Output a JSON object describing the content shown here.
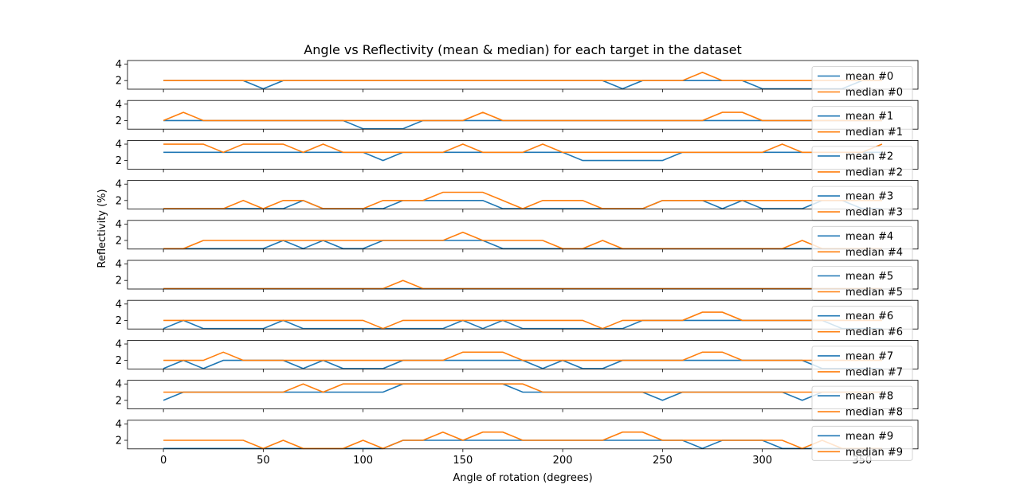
{
  "figure": {
    "title": "Angle vs Reflectivity (mean & median) for each target in the dataset",
    "xlabel": "Angle of rotation (degrees)",
    "ylabel": "Reflectivity (%)"
  },
  "colors": {
    "mean": "#1f77b4",
    "median": "#ff7f0e"
  },
  "chart_data": {
    "type": "line",
    "x": [
      0,
      10,
      20,
      30,
      40,
      50,
      60,
      70,
      80,
      90,
      100,
      110,
      120,
      130,
      140,
      150,
      160,
      170,
      180,
      190,
      200,
      210,
      220,
      230,
      240,
      250,
      260,
      270,
      280,
      290,
      300,
      310,
      320,
      330,
      340,
      350,
      360
    ],
    "xlim": [
      -18,
      378
    ],
    "ylim": [
      0.95,
      4.45
    ],
    "xticks": [
      0,
      50,
      100,
      150,
      200,
      250,
      300,
      350
    ],
    "yticks": [
      2,
      4
    ],
    "subplots": [
      {
        "series": [
          {
            "name": "mean #0",
            "values": [
              2,
              2,
              2,
              2,
              2,
              1,
              2,
              2,
              2,
              2,
              2,
              2,
              2,
              2,
              2,
              2,
              2,
              2,
              2,
              2,
              2,
              2,
              2,
              1,
              2,
              2,
              2,
              2,
              2,
              2,
              1,
              1,
              1,
              1,
              1,
              2,
              2
            ]
          },
          {
            "name": "median #0",
            "values": [
              2,
              2,
              2,
              2,
              2,
              2,
              2,
              2,
              2,
              2,
              2,
              2,
              2,
              2,
              2,
              2,
              2,
              2,
              2,
              2,
              2,
              2,
              2,
              2,
              2,
              2,
              2,
              3,
              2,
              2,
              2,
              2,
              2,
              2,
              2,
              2,
              2
            ]
          }
        ]
      },
      {
        "series": [
          {
            "name": "mean #1",
            "values": [
              2,
              2,
              2,
              2,
              2,
              2,
              2,
              2,
              2,
              2,
              1,
              1,
              1,
              2,
              2,
              2,
              2,
              2,
              2,
              2,
              2,
              2,
              2,
              2,
              2,
              2,
              2,
              2,
              2,
              2,
              2,
              2,
              2,
              2,
              2,
              2,
              2
            ]
          },
          {
            "name": "median #1",
            "values": [
              2,
              3,
              2,
              2,
              2,
              2,
              2,
              2,
              2,
              2,
              2,
              2,
              2,
              2,
              2,
              2,
              3,
              2,
              2,
              2,
              2,
              2,
              2,
              2,
              2,
              2,
              2,
              2,
              3,
              3,
              2,
              2,
              2,
              2,
              2,
              2,
              2
            ]
          }
        ]
      },
      {
        "series": [
          {
            "name": "mean #2",
            "values": [
              3,
              3,
              3,
              3,
              3,
              3,
              3,
              3,
              3,
              3,
              3,
              2,
              3,
              3,
              3,
              3,
              3,
              3,
              3,
              3,
              3,
              2,
              2,
              2,
              2,
              2,
              3,
              3,
              3,
              3,
              3,
              3,
              3,
              3,
              3,
              3,
              3
            ]
          },
          {
            "name": "median #2",
            "values": [
              4,
              4,
              4,
              3,
              4,
              4,
              4,
              3,
              4,
              3,
              3,
              3,
              3,
              3,
              3,
              4,
              3,
              3,
              3,
              4,
              3,
              3,
              3,
              3,
              3,
              3,
              3,
              3,
              3,
              3,
              3,
              4,
              3,
              3,
              3,
              3,
              4
            ]
          }
        ]
      },
      {
        "series": [
          {
            "name": "mean #3",
            "values": [
              1,
              1,
              1,
              1,
              1,
              1,
              1,
              2,
              1,
              1,
              1,
              1,
              2,
              2,
              2,
              2,
              2,
              1,
              1,
              1,
              1,
              1,
              1,
              1,
              1,
              2,
              2,
              2,
              1,
              2,
              1,
              1,
              1,
              2,
              2,
              1,
              1
            ]
          },
          {
            "name": "median #3",
            "values": [
              1,
              1,
              1,
              1,
              2,
              1,
              2,
              2,
              1,
              1,
              1,
              2,
              2,
              2,
              3,
              3,
              3,
              2,
              1,
              2,
              2,
              2,
              1,
              1,
              1,
              2,
              2,
              2,
              2,
              2,
              2,
              2,
              2,
              2,
              2,
              2,
              2
            ]
          }
        ]
      },
      {
        "series": [
          {
            "name": "mean #4",
            "values": [
              1,
              1,
              1,
              1,
              1,
              1,
              2,
              1,
              2,
              1,
              1,
              2,
              2,
              2,
              2,
              2,
              2,
              1,
              1,
              1,
              1,
              1,
              1,
              1,
              1,
              1,
              1,
              1,
              1,
              1,
              1,
              1,
              1,
              1,
              1,
              1,
              1
            ]
          },
          {
            "name": "median #4",
            "values": [
              1,
              1,
              2,
              2,
              2,
              2,
              2,
              2,
              2,
              2,
              2,
              2,
              2,
              2,
              2,
              3,
              2,
              2,
              2,
              2,
              1,
              1,
              2,
              1,
              1,
              1,
              1,
              1,
              1,
              1,
              1,
              1,
              2,
              1,
              1,
              1,
              1
            ]
          }
        ]
      },
      {
        "series": [
          {
            "name": "mean #5",
            "values": [
              1,
              1,
              1,
              1,
              1,
              1,
              1,
              1,
              1,
              1,
              1,
              1,
              1,
              1,
              1,
              1,
              1,
              1,
              1,
              1,
              1,
              1,
              1,
              1,
              1,
              1,
              1,
              1,
              1,
              1,
              1,
              1,
              1,
              1,
              1,
              1,
              1
            ]
          },
          {
            "name": "median #5",
            "values": [
              1,
              1,
              1,
              1,
              1,
              1,
              1,
              1,
              1,
              1,
              1,
              1,
              2,
              1,
              1,
              1,
              1,
              1,
              1,
              1,
              1,
              1,
              1,
              1,
              1,
              1,
              1,
              1,
              1,
              1,
              1,
              1,
              1,
              1,
              1,
              1,
              1
            ]
          }
        ]
      },
      {
        "series": [
          {
            "name": "mean #6",
            "values": [
              1,
              2,
              1,
              1,
              1,
              1,
              2,
              1,
              1,
              1,
              1,
              1,
              1,
              1,
              1,
              2,
              1,
              2,
              1,
              1,
              1,
              1,
              1,
              1,
              2,
              2,
              2,
              2,
              2,
              2,
              2,
              2,
              2,
              2,
              1,
              1,
              1
            ]
          },
          {
            "name": "median #6",
            "values": [
              2,
              2,
              2,
              2,
              2,
              2,
              2,
              2,
              2,
              2,
              2,
              1,
              2,
              2,
              2,
              2,
              2,
              2,
              2,
              2,
              2,
              2,
              1,
              2,
              2,
              2,
              2,
              3,
              3,
              2,
              2,
              2,
              2,
              2,
              2,
              2,
              2
            ]
          }
        ]
      },
      {
        "series": [
          {
            "name": "mean #7",
            "values": [
              1,
              2,
              1,
              2,
              2,
              2,
              2,
              1,
              2,
              1,
              1,
              1,
              2,
              2,
              2,
              2,
              2,
              2,
              2,
              1,
              2,
              1,
              1,
              2,
              2,
              2,
              2,
              2,
              2,
              2,
              2,
              2,
              2,
              1,
              1,
              1,
              1
            ]
          },
          {
            "name": "median #7",
            "values": [
              2,
              2,
              2,
              3,
              2,
              2,
              2,
              2,
              2,
              2,
              2,
              2,
              2,
              2,
              2,
              3,
              3,
              3,
              2,
              2,
              2,
              2,
              2,
              2,
              2,
              2,
              2,
              3,
              3,
              2,
              2,
              2,
              2,
              2,
              2,
              2,
              2
            ]
          }
        ]
      },
      {
        "series": [
          {
            "name": "mean #8",
            "values": [
              2,
              3,
              3,
              3,
              3,
              3,
              3,
              3,
              3,
              3,
              3,
              3,
              4,
              4,
              4,
              4,
              4,
              4,
              3,
              3,
              3,
              3,
              3,
              3,
              3,
              2,
              3,
              3,
              3,
              3,
              3,
              3,
              2,
              3,
              3,
              3,
              3
            ]
          },
          {
            "name": "median #8",
            "values": [
              3,
              3,
              3,
              3,
              3,
              3,
              3,
              4,
              3,
              4,
              4,
              4,
              4,
              4,
              4,
              4,
              4,
              4,
              4,
              3,
              3,
              3,
              3,
              3,
              3,
              3,
              3,
              3,
              3,
              3,
              3,
              3,
              3,
              3,
              3,
              3,
              3
            ]
          }
        ]
      },
      {
        "series": [
          {
            "name": "mean #9",
            "values": [
              1,
              1,
              1,
              1,
              1,
              1,
              1,
              1,
              1,
              1,
              1,
              1,
              2,
              2,
              2,
              2,
              2,
              2,
              2,
              2,
              2,
              2,
              2,
              2,
              2,
              2,
              2,
              1,
              2,
              2,
              2,
              1,
              1,
              1,
              1,
              1,
              1
            ]
          },
          {
            "name": "median #9",
            "values": [
              2,
              2,
              2,
              2,
              2,
              1,
              2,
              1,
              1,
              1,
              2,
              1,
              2,
              2,
              3,
              2,
              3,
              3,
              2,
              2,
              2,
              2,
              2,
              3,
              3,
              2,
              2,
              2,
              2,
              2,
              2,
              2,
              1,
              2,
              1,
              1,
              1
            ]
          }
        ]
      }
    ]
  }
}
